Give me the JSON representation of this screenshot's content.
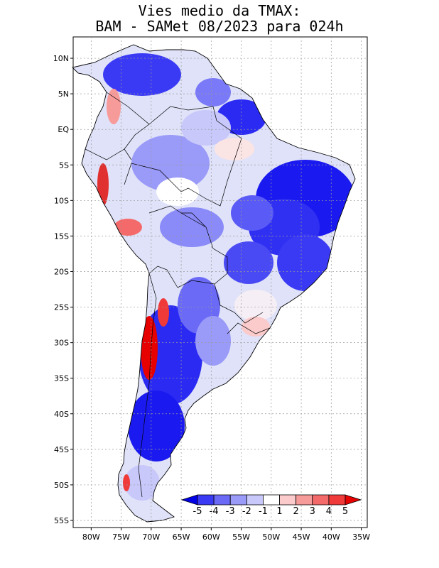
{
  "title": {
    "line1": "Vies medio da TMAX:",
    "line2": "BAM - SAMet 08/2023  para 024h"
  },
  "map": {
    "lat_labels": [
      "10N",
      "5N",
      "EQ",
      "5S",
      "10S",
      "15S",
      "20S",
      "25S",
      "30S",
      "35S",
      "40S",
      "45S",
      "50S",
      "55S"
    ],
    "lat_values": [
      10,
      5,
      0,
      -5,
      -10,
      -15,
      -20,
      -25,
      -30,
      -35,
      -40,
      -45,
      -50,
      -55
    ],
    "lon_labels": [
      "80W",
      "75W",
      "70W",
      "65W",
      "60W",
      "55W",
      "50W",
      "45W",
      "40W",
      "35W"
    ],
    "lon_values": [
      -80,
      -75,
      -70,
      -65,
      -60,
      -55,
      -50,
      -45,
      -40,
      -35
    ],
    "extent": {
      "lon": [
        -83,
        -34
      ],
      "lat": [
        -56,
        13
      ]
    }
  },
  "colorbar": {
    "labels": [
      "-5",
      "-4",
      "-3",
      "-2",
      "-1",
      "1",
      "2",
      "3",
      "4",
      "5"
    ],
    "colors": [
      "#0000f0",
      "#3a3af5",
      "#6a6af7",
      "#9a9af9",
      "#c8c8fb",
      "#ffffff",
      "#fbcaca",
      "#f79a9a",
      "#f46a6a",
      "#f03a3a",
      "#e00000"
    ],
    "underflow_color": "#0000e6",
    "overflow_color": "#e60000"
  },
  "palette": {
    "land_base": "#dfe2f8",
    "ocean": "#ffffff",
    "border": "#000000",
    "grid": "#999999"
  }
}
